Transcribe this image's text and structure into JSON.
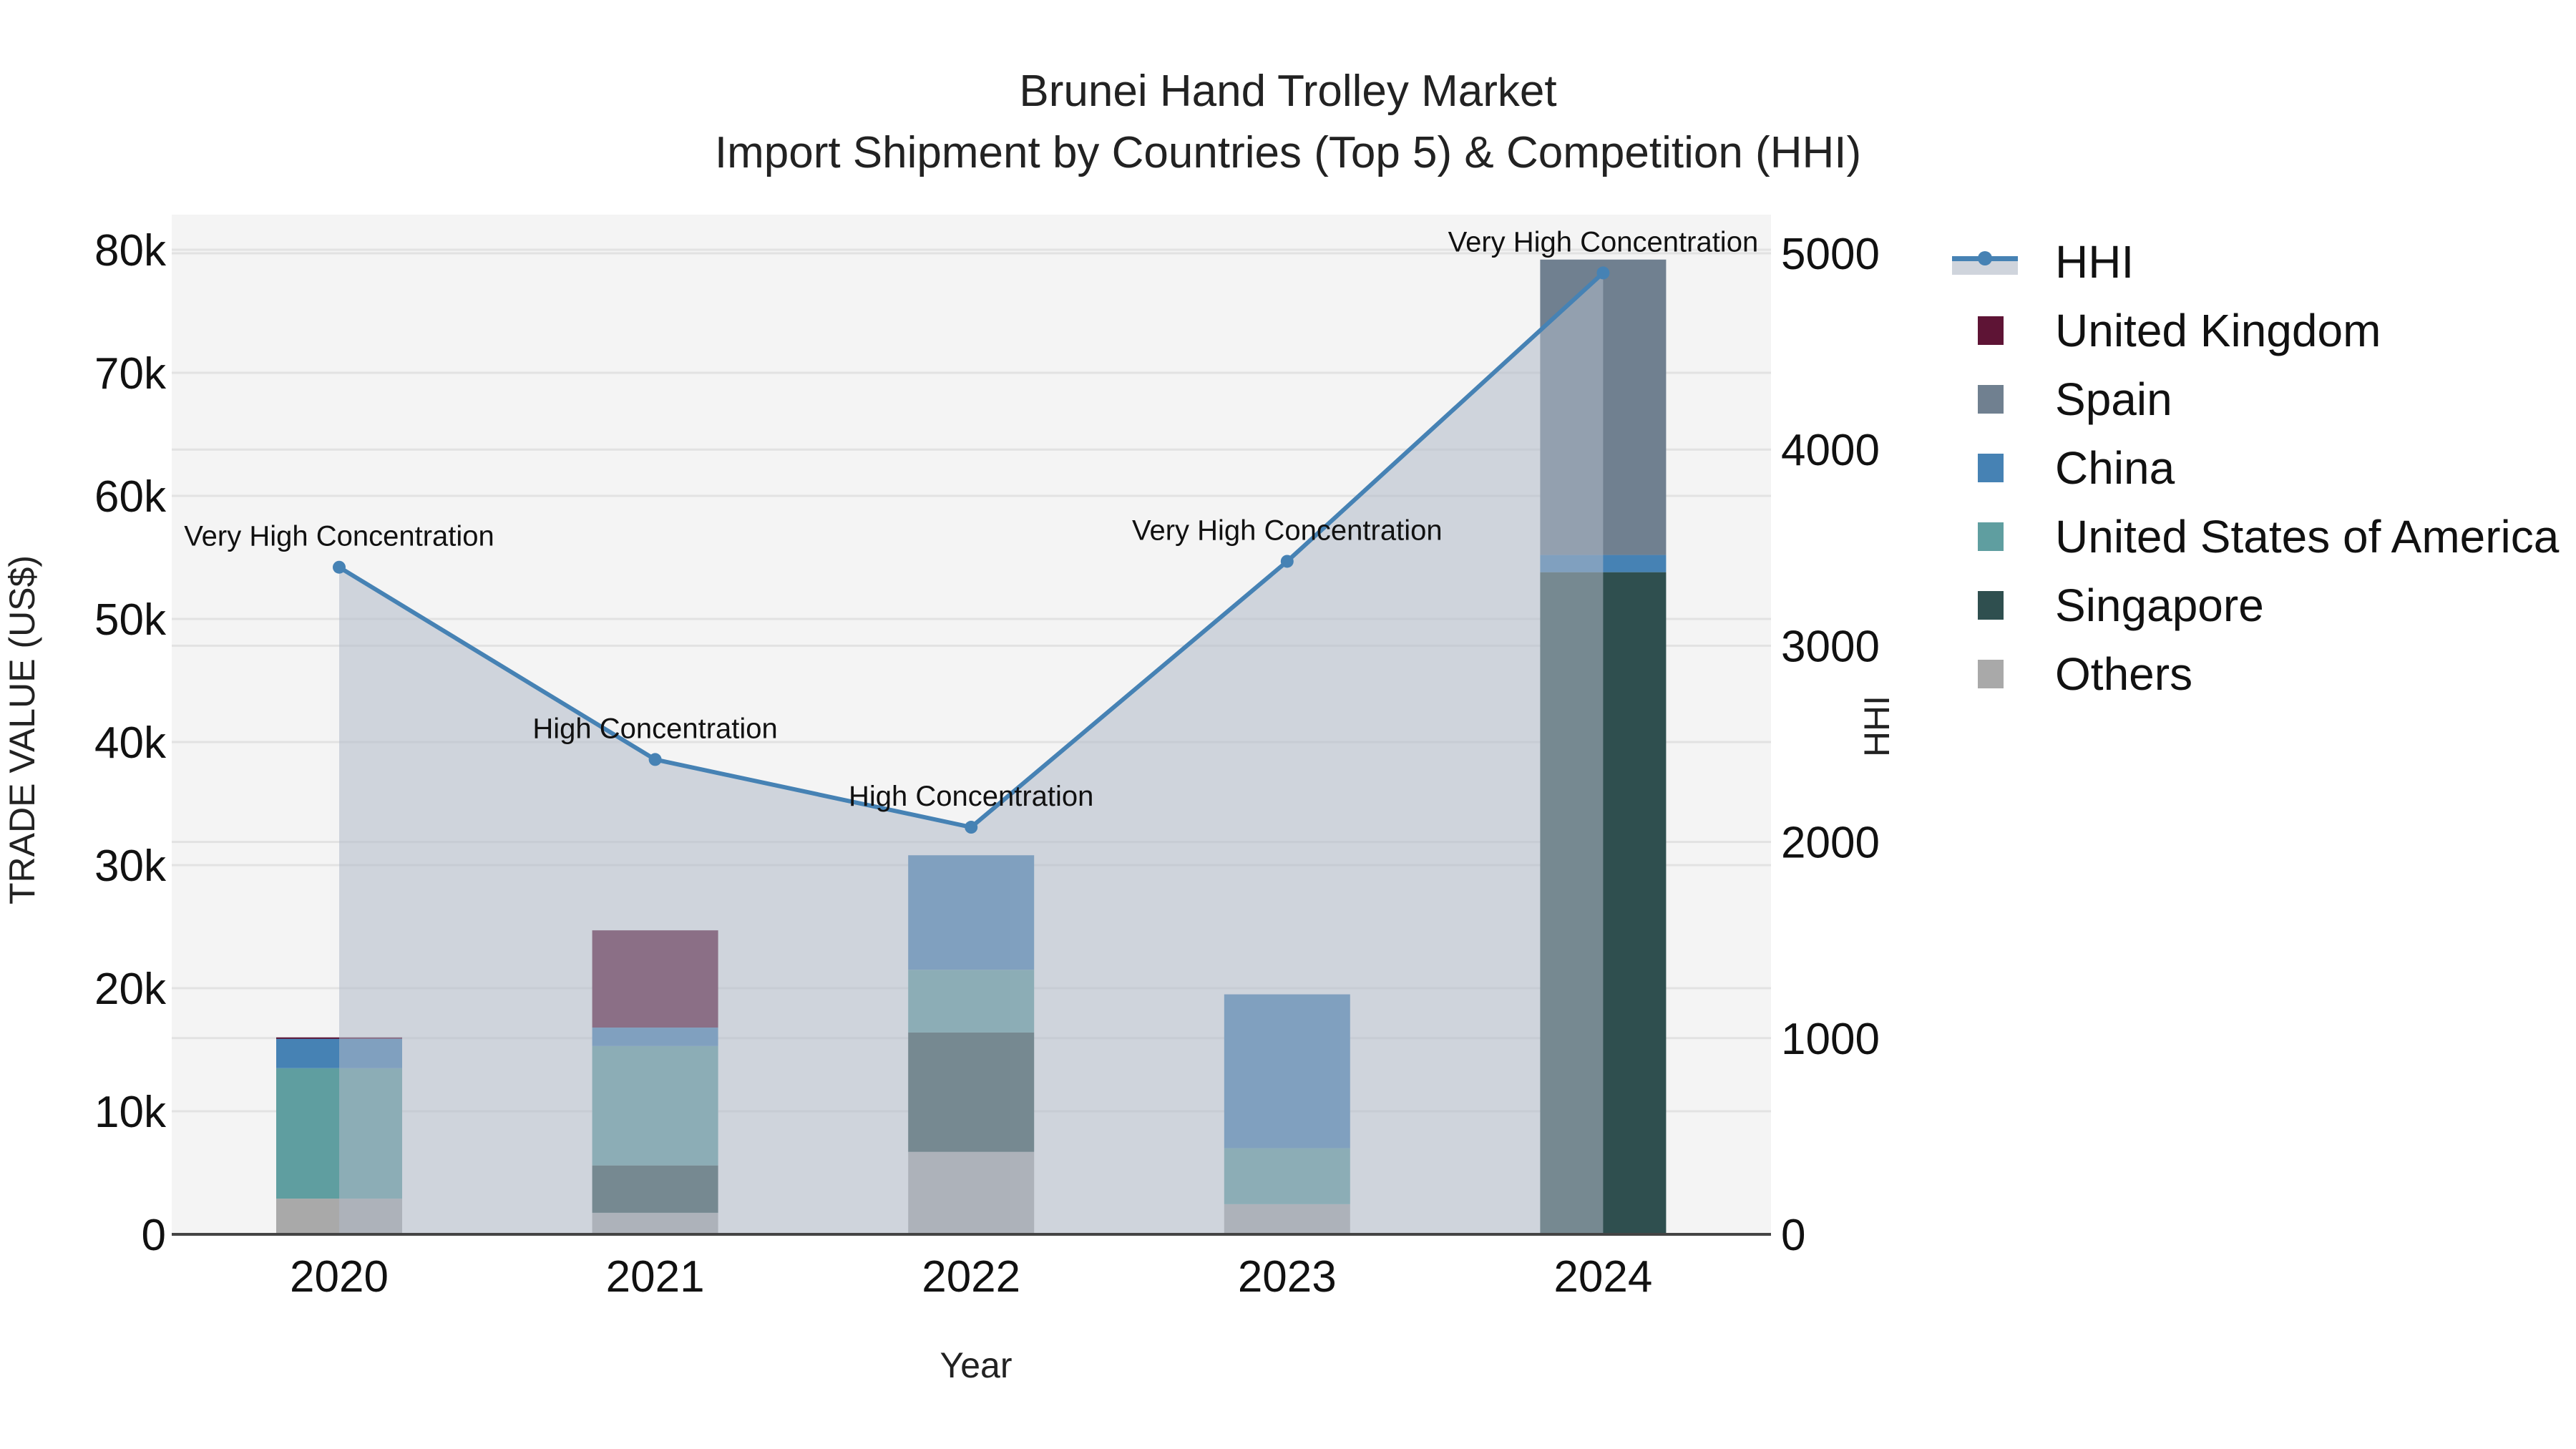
{
  "title": {
    "line1": "Brunei Hand Trolley Market",
    "line2": "Import Shipment by Countries (Top 5) & Competition (HHI)"
  },
  "axes": {
    "x_title": "Year",
    "y_left_title": "TRADE VALUE (US$)",
    "y_right_title": "HHI",
    "y_left_ticks": [
      "0",
      "10k",
      "20k",
      "30k",
      "40k",
      "50k",
      "60k",
      "70k",
      "80k"
    ],
    "y_right_ticks": [
      "0",
      "1000",
      "2000",
      "3000",
      "4000",
      "5000"
    ],
    "x_ticks": [
      "2020",
      "2021",
      "2022",
      "2023",
      "2024"
    ]
  },
  "legend": {
    "items": [
      {
        "label": "HHI",
        "type": "line",
        "color": "#4682b4"
      },
      {
        "label": "United Kingdom",
        "type": "box",
        "color": "#5e1435"
      },
      {
        "label": "Spain",
        "type": "box",
        "color": "#708090"
      },
      {
        "label": "China",
        "type": "box",
        "color": "#4682b4"
      },
      {
        "label": "United States of America",
        "type": "box",
        "color": "#5f9ea0"
      },
      {
        "label": "Singapore",
        "type": "box",
        "color": "#2f4f4f"
      },
      {
        "label": "Others",
        "type": "box",
        "color": "#a9a9a9"
      }
    ]
  },
  "colors": {
    "plot_bg": "#f4f4f4",
    "grid": "#e2e2e2",
    "area_fill": "rgba(176,186,200,0.55)",
    "hhi_line": "#4682b4"
  },
  "chart_data": {
    "type": "bar",
    "stacked": true,
    "title": "Brunei Hand Trolley Market — Import Shipment by Countries (Top 5) & Competition (HHI)",
    "xlabel": "Year",
    "ylabel": "TRADE VALUE (US$)",
    "y2label": "HHI",
    "ylim": [
      0,
      83000
    ],
    "y2lim": [
      0,
      5188
    ],
    "categories": [
      "2020",
      "2021",
      "2022",
      "2023",
      "2024"
    ],
    "series": [
      {
        "name": "Others",
        "color": "#a9a9a9",
        "values": [
          2900,
          1750,
          6700,
          2450,
          0
        ]
      },
      {
        "name": "Singapore",
        "color": "#2f4f4f",
        "values": [
          0,
          3850,
          9700,
          0,
          53800
        ]
      },
      {
        "name": "United States of America",
        "color": "#5f9ea0",
        "values": [
          10600,
          9700,
          5100,
          4550,
          0
        ]
      },
      {
        "name": "China",
        "color": "#4682b4",
        "values": [
          2400,
          1500,
          9300,
          12500,
          1400
        ]
      },
      {
        "name": "Spain",
        "color": "#708090",
        "values": [
          0,
          0,
          0,
          0,
          24000
        ]
      },
      {
        "name": "United Kingdom",
        "color": "#5e1435",
        "values": [
          100,
          7900,
          0,
          0,
          0
        ]
      }
    ],
    "hhi": {
      "name": "HHI",
      "type": "line+area",
      "axis": "right",
      "values": [
        3400,
        2420,
        2075,
        3430,
        4900
      ],
      "annotations": [
        "Very High Concentration",
        "High Concentration",
        "High Concentration",
        "Very High Concentration",
        "Very High Concentration"
      ]
    },
    "grid": true,
    "legend_position": "right"
  }
}
